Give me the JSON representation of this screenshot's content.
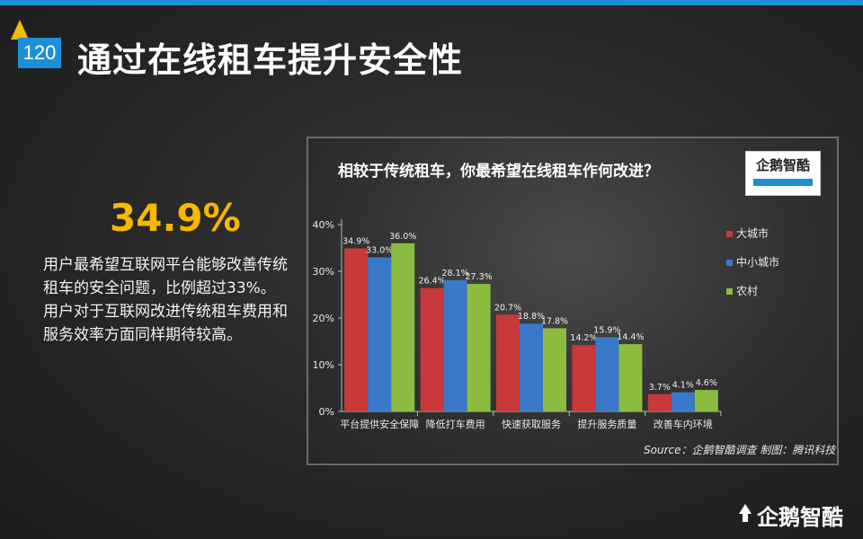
{
  "page": {
    "number": "120",
    "title": "通过在线租车提升安全性"
  },
  "highlight": {
    "stat": "34.9%",
    "description": "用户最希望互联网平台能够改善传统租车的安全问题，比例超过33%。用户对于互联网改进传统租车费用和服务效率方面同样期待较高。"
  },
  "logo": {
    "text": "企鹅智酷"
  },
  "brand": {
    "text": "企鹅智酷"
  },
  "colors": {
    "accent": "#1e8fd6",
    "highlight": "#f6b800",
    "series": [
      "#c8393a",
      "#3a78c9",
      "#8cbc3f"
    ]
  },
  "chart_data": {
    "type": "bar",
    "title": "相较于传统租车，你最希望在线租车作何改进？",
    "categories": [
      "平台提供安全保障",
      "降低打车费用",
      "快速获取服务",
      "提升服务质量",
      "改善车内环境"
    ],
    "series": [
      {
        "name": "大城市",
        "values": [
          34.9,
          26.4,
          20.7,
          14.2,
          3.7
        ],
        "labels": [
          "34.9%",
          "26.4%",
          "20.7%",
          "14.2%",
          "3.7%"
        ]
      },
      {
        "name": "中小城市",
        "values": [
          33.0,
          28.1,
          18.8,
          15.9,
          4.1
        ],
        "labels": [
          "33.0%",
          "28.1%",
          "18.8%",
          "15.9%",
          "4.1%"
        ]
      },
      {
        "name": "农村",
        "values": [
          36.0,
          27.3,
          17.8,
          14.4,
          4.6
        ],
        "labels": [
          "36.0%",
          "27.3%",
          "17.8%",
          "14.4%",
          "4.6%"
        ]
      }
    ],
    "ylim": [
      0,
      40
    ],
    "yticks": [
      "0%",
      "10%",
      "20%",
      "30%",
      "40%"
    ],
    "legend_position": "right",
    "grid": false,
    "source": "Source：企鹅智酷调查  制图：腾讯科技"
  }
}
